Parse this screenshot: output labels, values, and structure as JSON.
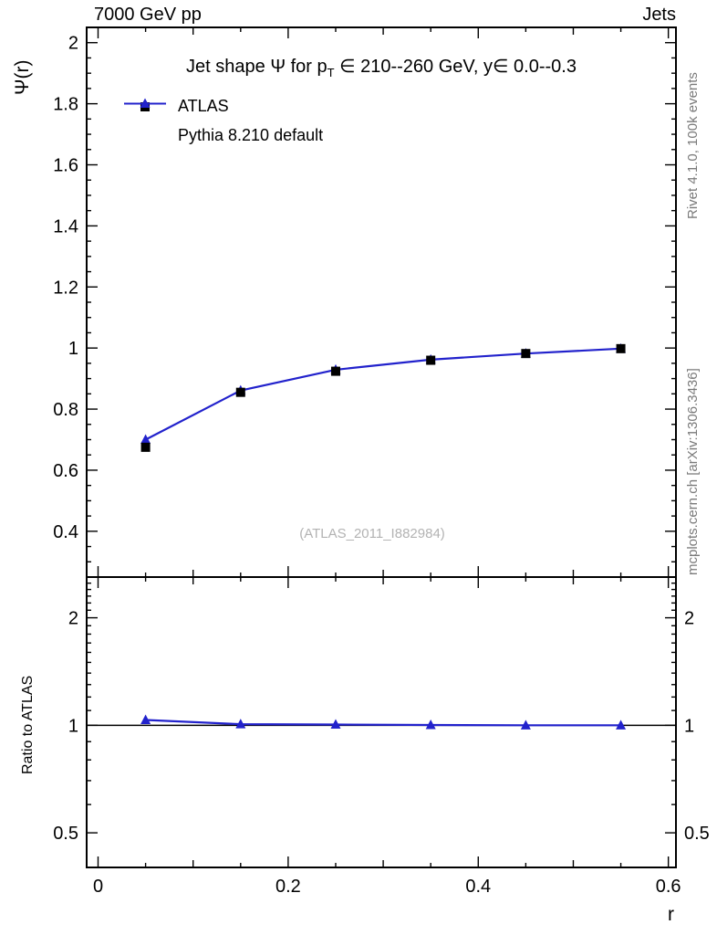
{
  "header": {
    "left": "7000 GeV pp",
    "right": "Jets"
  },
  "notes": {
    "rivet": "Rivet 4.1.0, 100k events",
    "mcplots": "mcplots.cern.ch [arXiv:1306.3436]"
  },
  "watermark": "(ATLAS_2011_I882984)",
  "chart_data": [
    {
      "type": "line",
      "panel": "main",
      "title": "Jet shape Ψ for p_T ∈ 210--260 GeV, y∈ 0.0--0.3",
      "title_parts": {
        "pre": "Jet shape Ψ for p",
        "sub": "T",
        "post": " ∈ 210--260 GeV, y∈ 0.0--0.3"
      },
      "ylabel": "Ψ(r)",
      "xlim": [
        -0.012,
        0.608
      ],
      "ylim": [
        0.25,
        2.05
      ],
      "yticks": [
        0.4,
        0.6,
        0.8,
        1,
        1.2,
        1.4,
        1.6,
        1.8,
        2
      ],
      "y_minor_step": 0.05,
      "x_minor_step": 0.05,
      "x": [
        0.05,
        0.15,
        0.25,
        0.35,
        0.45,
        0.55
      ],
      "series": [
        {
          "name": "ATLAS",
          "marker": "square",
          "color": "#000000",
          "line": false,
          "values": [
            0.675,
            0.855,
            0.924,
            0.96,
            0.982,
            0.998
          ]
        },
        {
          "name": "Pythia 8.210 default",
          "marker": "triangle",
          "color": "#2222cc",
          "line": true,
          "values": [
            0.7,
            0.861,
            0.929,
            0.962,
            0.982,
            0.998
          ]
        }
      ],
      "legend_position": "top-left",
      "grid": false
    },
    {
      "type": "line",
      "panel": "ratio",
      "ylabel": "Ratio to ATLAS",
      "xlabel": "r",
      "yscale": "log",
      "xlim": [
        -0.012,
        0.608
      ],
      "ylim": [
        0.4,
        2.6
      ],
      "yticks": [
        0.5,
        1,
        2
      ],
      "xticks": [
        0,
        0.2,
        0.4,
        0.6
      ],
      "reference_line": 1,
      "x": [
        0.05,
        0.15,
        0.25,
        0.35,
        0.45,
        0.55
      ],
      "series": [
        {
          "name": "Pythia 8.210 default",
          "marker": "triangle",
          "color": "#2222cc",
          "line": true,
          "values": [
            1.035,
            1.007,
            1.005,
            1.002,
            1.0,
            1.0
          ]
        }
      ],
      "grid": false
    }
  ]
}
